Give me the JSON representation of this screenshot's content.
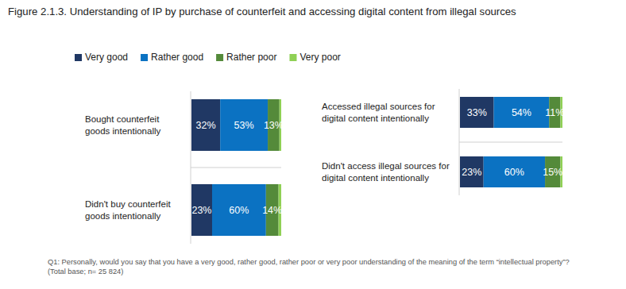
{
  "chart_data": {
    "type": "bar",
    "title": "Figure 2.1.3. Understanding of IP by purchase of counterfeit and accessing digital content from illegal sources",
    "notes": [
      "Q1: Personally, would you say that you have a very good, rather good, rather poor or very poor understanding of the meaning of the term “intellectual property”?",
      "(Total base; n= 25 824)"
    ],
    "orientation": "horizontal",
    "stacked": true,
    "data_labels": true,
    "tick_labels": "y",
    "legend": "top",
    "xlim": [
      0,
      100
    ],
    "categories": [
      "Bought counterfeit goods intentionally",
      "Didn't buy counterfeit goods intentionally",
      "Accessed illegal sources for digital content intentionally",
      "Didn't access illegal sources for digital content intentionally"
    ],
    "series": [
      {
        "name": "Very good",
        "color": "#203864",
        "values": [
          32,
          23,
          33,
          23
        ],
        "value_labels": [
          "32%",
          "23%",
          "33%",
          "23%"
        ]
      },
      {
        "name": "Rather good",
        "color": "#0b72c2",
        "values": [
          53,
          60,
          54,
          60
        ],
        "value_labels": [
          "53%",
          "60%",
          "54%",
          "60%"
        ]
      },
      {
        "name": "Rather poor",
        "color": "#548a3a",
        "values": [
          13,
          14,
          11,
          15
        ],
        "value_labels": [
          "13%",
          "14%",
          "11%",
          "15%"
        ]
      },
      {
        "name": "Very poor",
        "color": "#8fd055",
        "values": [
          2,
          3,
          2,
          2
        ],
        "value_labels": [
          null,
          null,
          null,
          null
        ]
      }
    ]
  }
}
